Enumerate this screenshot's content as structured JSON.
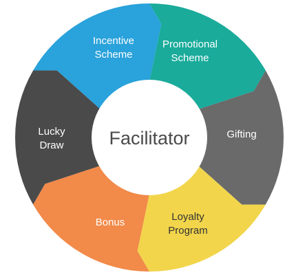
{
  "diagram": {
    "center": {
      "label": "Facilitator"
    },
    "segments": [
      {
        "id": "promotional",
        "lines": [
          "Promotional",
          "Scheme"
        ],
        "color": "#1aab9b"
      },
      {
        "id": "gifting",
        "lines": [
          "Gifting"
        ],
        "color": "#6a6a6a"
      },
      {
        "id": "loyalty",
        "lines": [
          "Loyalty",
          "Program"
        ],
        "color": "#f2d54b"
      },
      {
        "id": "bonus",
        "lines": [
          "Bonus"
        ],
        "color": "#f28a49"
      },
      {
        "id": "lucky",
        "lines": [
          "Lucky",
          "Draw"
        ],
        "color": "#4a4a4a"
      },
      {
        "id": "incentive",
        "lines": [
          "Incentive",
          "Scheme"
        ],
        "color": "#2aa2db"
      }
    ]
  }
}
